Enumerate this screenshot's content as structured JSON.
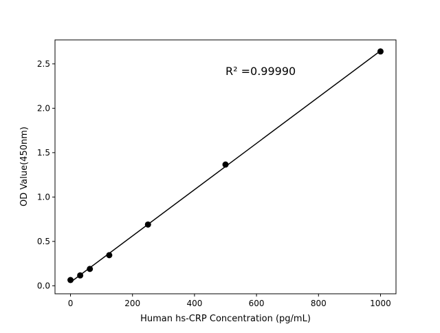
{
  "chart_data": {
    "type": "scatter",
    "xlabel": "Human hs-CRP Concentration (pg/mL)",
    "ylabel": "OD Value(450nm)",
    "annotation": "R² =0.99990",
    "xlim": [
      -50,
      1050
    ],
    "ylim": [
      -0.09,
      2.77
    ],
    "xticks": [
      0,
      200,
      400,
      600,
      800,
      1000
    ],
    "yticks": [
      0.0,
      0.5,
      1.0,
      1.5,
      2.0,
      2.5
    ],
    "grid": false,
    "series": [
      {
        "x": [
          0,
          31.25,
          62.5,
          125,
          250,
          500,
          1000
        ],
        "y": [
          0.065,
          0.117,
          0.19,
          0.345,
          0.69,
          1.366,
          2.64
        ],
        "marker": "circle",
        "color": "#000000",
        "fit": "linear"
      }
    ]
  }
}
